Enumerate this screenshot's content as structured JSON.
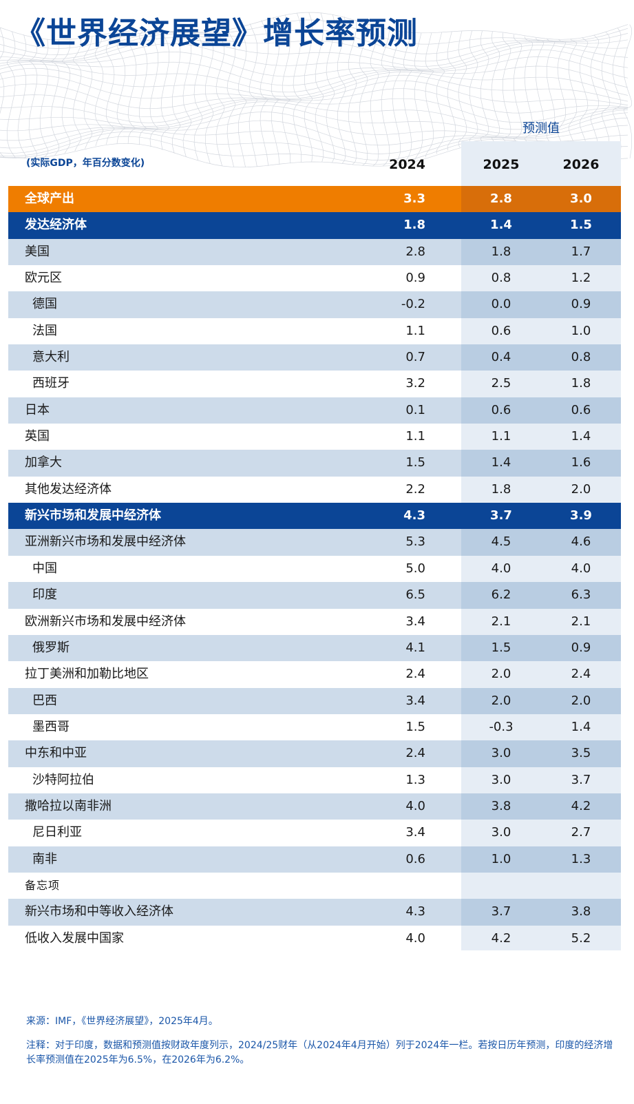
{
  "title": "《世界经济展望》增长率预测",
  "forecast_label": "预测值",
  "unit_label": "(实际GDP，年百分数变化)",
  "years": [
    "2024",
    "2025",
    "2026"
  ],
  "rows": [
    {
      "name": "全球产出",
      "kind": "world",
      "values": [
        "3.3",
        "2.8",
        "3.0"
      ]
    },
    {
      "name": "发达经济体",
      "kind": "group",
      "values": [
        "1.8",
        "1.4",
        "1.5"
      ]
    },
    {
      "name": "美国",
      "kind": "band",
      "values": [
        "2.8",
        "1.8",
        "1.7"
      ]
    },
    {
      "name": "欧元区",
      "kind": "plain",
      "values": [
        "0.9",
        "0.8",
        "1.2"
      ]
    },
    {
      "name": "德国",
      "kind": "band",
      "indent": true,
      "values": [
        "-0.2",
        "0.0",
        "0.9"
      ]
    },
    {
      "name": "法国",
      "kind": "plain",
      "indent": true,
      "values": [
        "1.1",
        "0.6",
        "1.0"
      ]
    },
    {
      "name": "意大利",
      "kind": "band",
      "indent": true,
      "values": [
        "0.7",
        "0.4",
        "0.8"
      ]
    },
    {
      "name": "西班牙",
      "kind": "plain",
      "indent": true,
      "values": [
        "3.2",
        "2.5",
        "1.8"
      ]
    },
    {
      "name": "日本",
      "kind": "band",
      "values": [
        "0.1",
        "0.6",
        "0.6"
      ]
    },
    {
      "name": "英国",
      "kind": "plain",
      "values": [
        "1.1",
        "1.1",
        "1.4"
      ]
    },
    {
      "name": "加拿大",
      "kind": "band",
      "values": [
        "1.5",
        "1.4",
        "1.6"
      ]
    },
    {
      "name": "其他发达经济体",
      "kind": "plain",
      "values": [
        "2.2",
        "1.8",
        "2.0"
      ]
    },
    {
      "name": "新兴市场和发展中经济体",
      "kind": "group",
      "values": [
        "4.3",
        "3.7",
        "3.9"
      ]
    },
    {
      "name": "亚洲新兴市场和发展中经济体",
      "kind": "band",
      "values": [
        "5.3",
        "4.5",
        "4.6"
      ]
    },
    {
      "name": "中国",
      "kind": "plain",
      "indent": true,
      "values": [
        "5.0",
        "4.0",
        "4.0"
      ]
    },
    {
      "name": "印度",
      "kind": "band",
      "indent": true,
      "values": [
        "6.5",
        "6.2",
        "6.3"
      ]
    },
    {
      "name": "欧洲新兴市场和发展中经济体",
      "kind": "plain",
      "values": [
        "3.4",
        "2.1",
        "2.1"
      ]
    },
    {
      "name": "俄罗斯",
      "kind": "band",
      "indent": true,
      "values": [
        "4.1",
        "1.5",
        "0.9"
      ]
    },
    {
      "name": "拉丁美洲和加勒比地区",
      "kind": "plain",
      "values": [
        "2.4",
        "2.0",
        "2.4"
      ]
    },
    {
      "name": "巴西",
      "kind": "band",
      "indent": true,
      "values": [
        "3.4",
        "2.0",
        "2.0"
      ]
    },
    {
      "name": "墨西哥",
      "kind": "plain",
      "indent": true,
      "values": [
        "1.5",
        "-0.3",
        "1.4"
      ]
    },
    {
      "name": "中东和中亚",
      "kind": "band",
      "values": [
        "2.4",
        "3.0",
        "3.5"
      ]
    },
    {
      "name": "沙特阿拉伯",
      "kind": "plain",
      "indent": true,
      "values": [
        "1.3",
        "3.0",
        "3.7"
      ]
    },
    {
      "name": "撒哈拉以南非洲",
      "kind": "band",
      "values": [
        "4.0",
        "3.8",
        "4.2"
      ]
    },
    {
      "name": "尼日利亚",
      "kind": "plain",
      "indent": true,
      "values": [
        "3.4",
        "3.0",
        "2.7"
      ]
    },
    {
      "name": "南非",
      "kind": "band",
      "indent": true,
      "values": [
        "0.6",
        "1.0",
        "1.3"
      ]
    },
    {
      "name": "备忘项",
      "kind": "memo",
      "values": [
        "",
        "",
        ""
      ]
    },
    {
      "name": "新兴市场和中等收入经济体",
      "kind": "band",
      "values": [
        "4.3",
        "3.7",
        "3.8"
      ]
    },
    {
      "name": "低收入发展中国家",
      "kind": "plain",
      "values": [
        "4.0",
        "4.2",
        "5.2"
      ]
    }
  ],
  "source": "来源：IMF，《世界经济展望》，2025年4月。",
  "note": "注释：对于印度，数据和预测值按财政年度列示，2024/25财年（从2024年4月开始）列于2024年一栏。若按日历年预测，印度的经济增长率预测值在2025年为6.5%，在2026年为6.2%。",
  "colors": {
    "title": "#0b4596",
    "world_row": "#ef7d00",
    "group_row": "#0b4596",
    "band_row": "#cddbea",
    "forecast_shade": "#e6edf5"
  },
  "chart_data": {
    "type": "table",
    "title": "《世界经济展望》增长率预测",
    "subtitle": "(实际GDP，年百分数变化)",
    "columns": [
      "2024",
      "2025",
      "2026"
    ],
    "column_group": {
      "label": "预测值",
      "columns": [
        "2025",
        "2026"
      ]
    },
    "rows": [
      {
        "label": "全球产出",
        "values": [
          3.3,
          2.8,
          3.0
        ]
      },
      {
        "label": "发达经济体",
        "values": [
          1.8,
          1.4,
          1.5
        ]
      },
      {
        "label": "美国",
        "values": [
          2.8,
          1.8,
          1.7
        ]
      },
      {
        "label": "欧元区",
        "values": [
          0.9,
          0.8,
          1.2
        ]
      },
      {
        "label": "德国",
        "values": [
          -0.2,
          0.0,
          0.9
        ]
      },
      {
        "label": "法国",
        "values": [
          1.1,
          0.6,
          1.0
        ]
      },
      {
        "label": "意大利",
        "values": [
          0.7,
          0.4,
          0.8
        ]
      },
      {
        "label": "西班牙",
        "values": [
          3.2,
          2.5,
          1.8
        ]
      },
      {
        "label": "日本",
        "values": [
          0.1,
          0.6,
          0.6
        ]
      },
      {
        "label": "英国",
        "values": [
          1.1,
          1.1,
          1.4
        ]
      },
      {
        "label": "加拿大",
        "values": [
          1.5,
          1.4,
          1.6
        ]
      },
      {
        "label": "其他发达经济体",
        "values": [
          2.2,
          1.8,
          2.0
        ]
      },
      {
        "label": "新兴市场和发展中经济体",
        "values": [
          4.3,
          3.7,
          3.9
        ]
      },
      {
        "label": "亚洲新兴市场和发展中经济体",
        "values": [
          5.3,
          4.5,
          4.6
        ]
      },
      {
        "label": "中国",
        "values": [
          5.0,
          4.0,
          4.0
        ]
      },
      {
        "label": "印度",
        "values": [
          6.5,
          6.2,
          6.3
        ]
      },
      {
        "label": "欧洲新兴市场和发展中经济体",
        "values": [
          3.4,
          2.1,
          2.1
        ]
      },
      {
        "label": "俄罗斯",
        "values": [
          4.1,
          1.5,
          0.9
        ]
      },
      {
        "label": "拉丁美洲和加勒比地区",
        "values": [
          2.4,
          2.0,
          2.4
        ]
      },
      {
        "label": "巴西",
        "values": [
          3.4,
          2.0,
          2.0
        ]
      },
      {
        "label": "墨西哥",
        "values": [
          1.5,
          -0.3,
          1.4
        ]
      },
      {
        "label": "中东和中亚",
        "values": [
          2.4,
          3.0,
          3.5
        ]
      },
      {
        "label": "沙特阿拉伯",
        "values": [
          1.3,
          3.0,
          3.7
        ]
      },
      {
        "label": "撒哈拉以南非洲",
        "values": [
          4.0,
          3.8,
          4.2
        ]
      },
      {
        "label": "尼日利亚",
        "values": [
          3.4,
          3.0,
          2.7
        ]
      },
      {
        "label": "南非",
        "values": [
          0.6,
          1.0,
          1.3
        ]
      },
      {
        "label": "新兴市场和中等收入经济体",
        "values": [
          4.3,
          3.7,
          3.8
        ]
      },
      {
        "label": "低收入发展中国家",
        "values": [
          4.0,
          4.2,
          5.2
        ]
      }
    ]
  }
}
